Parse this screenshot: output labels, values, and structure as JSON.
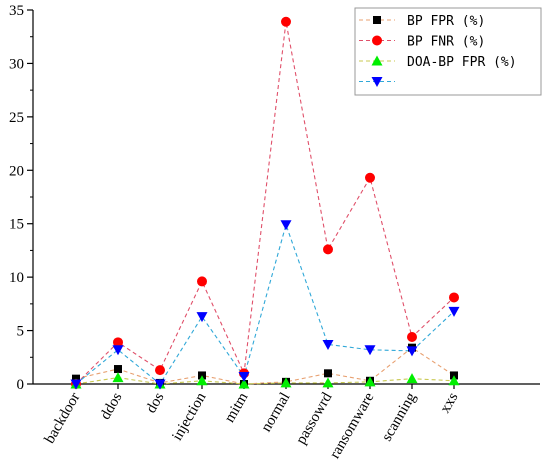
{
  "chart_data": {
    "type": "line",
    "title": "",
    "xlabel": "",
    "ylabel": "",
    "categories": [
      "backdoor",
      "ddos",
      "dos",
      "injection",
      "mitm",
      "normal",
      "passowrd",
      "ransomware",
      "scanning",
      "xxs"
    ],
    "ylim": [
      0,
      35
    ],
    "y_ticks": [
      0,
      5,
      10,
      15,
      20,
      25,
      30,
      35
    ],
    "grid": false,
    "legend_position": "top-right",
    "series": [
      {
        "name": "BP FPR (%)",
        "marker": "square",
        "color": "#000000",
        "line_color": "#e8a070",
        "values": [
          0.5,
          1.4,
          0.1,
          0.8,
          0.0,
          0.2,
          1.0,
          0.3,
          3.4,
          0.8
        ]
      },
      {
        "name": "BP FNR (%)",
        "marker": "circle",
        "color": "#ff0000",
        "line_color": "#e0506a",
        "values": [
          0.0,
          3.9,
          1.3,
          9.6,
          1.0,
          33.9,
          12.6,
          19.3,
          4.4,
          8.1
        ]
      },
      {
        "name": "DOA-BP FPR (%)",
        "marker": "triangle-up",
        "color": "#00ee00",
        "line_color": "#c8c850",
        "values": [
          0.0,
          0.6,
          0.0,
          0.3,
          0.0,
          0.1,
          0.1,
          0.2,
          0.5,
          0.3
        ]
      },
      {
        "marker": "triangle-down",
        "color": "#0000ff",
        "line_color": "#30a8d8",
        "values": [
          0.0,
          3.2,
          0.0,
          6.3,
          0.7,
          14.9,
          3.7,
          3.2,
          3.1,
          6.8
        ]
      }
    ]
  }
}
